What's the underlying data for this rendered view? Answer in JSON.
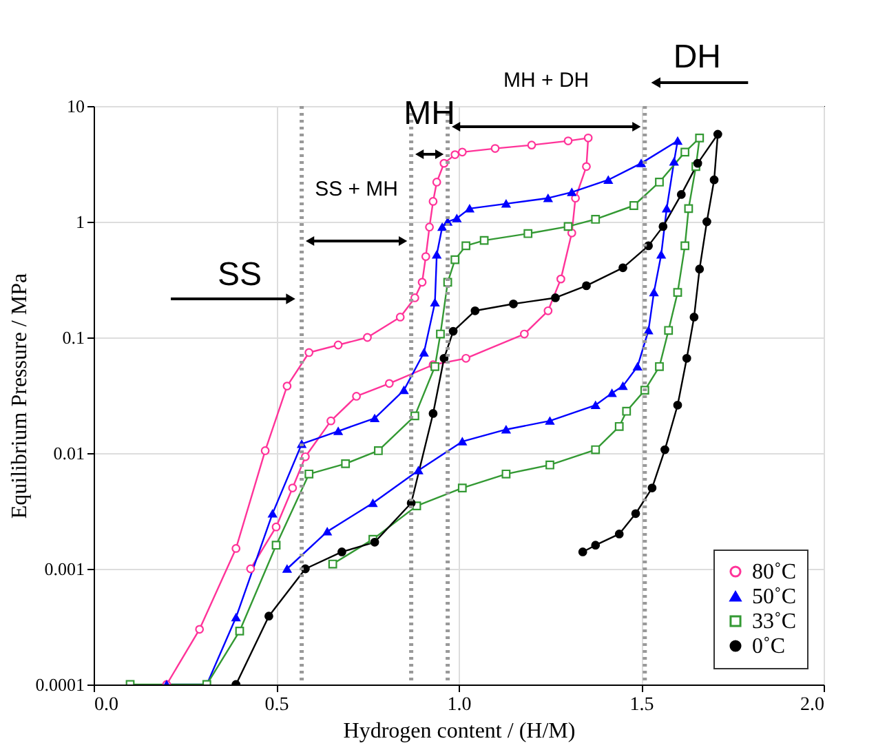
{
  "chart_data": {
    "type": "line",
    "xlabel": "Hydrogen content / (H/M)",
    "ylabel": "Equilibrium Pressure / MPa",
    "xlim": [
      0,
      2
    ],
    "xticks": [
      {
        "value": 0,
        "label": "0.0"
      },
      {
        "value": 0.5,
        "label": "0.5"
      },
      {
        "value": 1,
        "label": "1.0"
      },
      {
        "value": 1.5,
        "label": "1.5"
      },
      {
        "value": 2,
        "label": "2.0"
      }
    ],
    "ylim": [
      0.0001,
      10
    ],
    "yticks": [
      0.0001,
      0.001,
      0.01,
      0.1,
      1,
      10
    ],
    "log": true,
    "grid": true,
    "legend": "bottom right",
    "line_style": "solid",
    "series": [
      {
        "name": "80˚C",
        "color": "#ff3399",
        "marker": "circle",
        "x": [
          0.2,
          0.29,
          0.39,
          0.47,
          0.53,
          0.59,
          0.67,
          0.75,
          0.84,
          0.88,
          0.9,
          0.91,
          0.92,
          0.93,
          0.94,
          0.96,
          0.99,
          1.01,
          1.1,
          1.2,
          1.3,
          1.355,
          1.35,
          1.32,
          1.31,
          1.28,
          1.245,
          1.18,
          1.02,
          0.93,
          0.81,
          0.72,
          0.65,
          0.58,
          0.545,
          0.5,
          0.43
        ],
        "values": [
          0.0001,
          0.0003,
          0.0015,
          0.0105,
          0.038,
          0.074,
          0.086,
          0.1,
          0.15,
          0.22,
          0.3,
          0.5,
          0.9,
          1.5,
          2.2,
          3.2,
          3.8,
          4.0,
          4.3,
          4.6,
          5.0,
          5.3,
          3.0,
          1.6,
          0.8,
          0.32,
          0.17,
          0.107,
          0.066,
          0.058,
          0.04,
          0.031,
          0.019,
          0.0093,
          0.005,
          0.0023,
          0.001
        ]
      },
      {
        "name": "50˚C",
        "color": "#0000ff",
        "marker": "triangle",
        "x": [
          0.2,
          0.31,
          0.39,
          0.49,
          0.57,
          0.67,
          0.77,
          0.85,
          0.905,
          0.935,
          0.94,
          0.955,
          0.97,
          0.995,
          1.03,
          1.13,
          1.245,
          1.31,
          1.41,
          1.5,
          1.6,
          1.59,
          1.57,
          1.555,
          1.535,
          1.52,
          1.49,
          1.45,
          1.42,
          1.375,
          1.25,
          1.13,
          1.01,
          0.89,
          0.765,
          0.64,
          0.53
        ],
        "values": [
          0.0001,
          0.0001,
          0.00038,
          0.003,
          0.012,
          0.0155,
          0.02,
          0.035,
          0.074,
          0.2,
          0.52,
          0.9,
          1.0,
          1.07,
          1.3,
          1.43,
          1.6,
          1.8,
          2.3,
          3.2,
          5.0,
          3.3,
          1.3,
          0.52,
          0.245,
          0.115,
          0.056,
          0.038,
          0.033,
          0.026,
          0.019,
          0.016,
          0.0126,
          0.0071,
          0.0037,
          0.0021,
          0.001
        ]
      },
      {
        "name": "33˚C",
        "color": "#339933",
        "marker": "square",
        "x": [
          0.1,
          0.31,
          0.4,
          0.5,
          0.59,
          0.69,
          0.78,
          0.88,
          0.935,
          0.95,
          0.97,
          0.99,
          1.02,
          1.07,
          1.19,
          1.3,
          1.375,
          1.48,
          1.55,
          1.62,
          1.66,
          1.65,
          1.63,
          1.62,
          1.6,
          1.575,
          1.55,
          1.51,
          1.46,
          1.44,
          1.375,
          1.25,
          1.13,
          1.01,
          0.885,
          0.765,
          0.655
        ],
        "values": [
          0.0001,
          0.0001,
          0.00029,
          0.0016,
          0.0066,
          0.0081,
          0.0105,
          0.021,
          0.056,
          0.107,
          0.3,
          0.47,
          0.62,
          0.69,
          0.79,
          0.91,
          1.05,
          1.38,
          2.2,
          4.0,
          5.3,
          3.0,
          1.3,
          0.62,
          0.245,
          0.115,
          0.056,
          0.035,
          0.023,
          0.017,
          0.0107,
          0.0079,
          0.0066,
          0.005,
          0.0035,
          0.0018,
          0.0011
        ]
      },
      {
        "name": "0˚C",
        "color": "#000000",
        "marker": "circle",
        "x": [
          0.39,
          0.48,
          0.58,
          0.68,
          0.77,
          0.87,
          0.93,
          0.96,
          0.985,
          1.045,
          1.15,
          1.265,
          1.35,
          1.45,
          1.52,
          1.56,
          1.61,
          1.655,
          1.71,
          1.7,
          1.68,
          1.66,
          1.645,
          1.625,
          1.6,
          1.565,
          1.53,
          1.485,
          1.44,
          1.375,
          1.34
        ],
        "values": [
          0.0001,
          0.00039,
          0.001,
          0.0014,
          0.0017,
          0.0037,
          0.022,
          0.066,
          0.113,
          0.17,
          0.195,
          0.22,
          0.28,
          0.4,
          0.62,
          0.91,
          1.72,
          3.2,
          5.7,
          2.3,
          1.0,
          0.39,
          0.15,
          0.066,
          0.026,
          0.0107,
          0.005,
          0.003,
          0.002,
          0.0016,
          0.0014
        ]
      }
    ],
    "ref_lines": [
      {
        "axis": "x",
        "value": 0.57,
        "label": null,
        "color": "#999999",
        "line_style": "dotted"
      },
      {
        "axis": "x",
        "value": 0.87,
        "label": null,
        "color": "#999999",
        "line_style": "dotted"
      },
      {
        "axis": "x",
        "value": 0.97,
        "label": null,
        "color": "#999999",
        "line_style": "dotted"
      },
      {
        "axis": "x",
        "value": 1.51,
        "label": null,
        "color": "#999999",
        "line_style": "dotted"
      }
    ],
    "annotations": [
      "SS",
      "SS + MH",
      "MH",
      "MH + DH",
      "DH"
    ]
  }
}
